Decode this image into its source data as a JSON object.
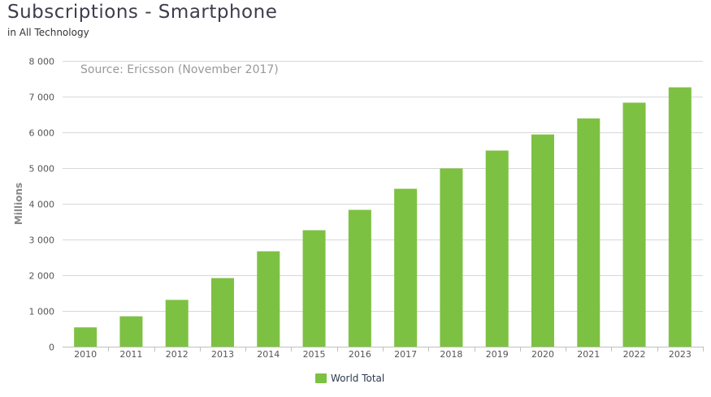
{
  "header": {
    "title": "Subscriptions - Smartphone",
    "subtitle": "in All Technology"
  },
  "colors": {
    "bar": "#7dc142",
    "grid": "#d8d8d8",
    "axis_text": "#555555",
    "source_text": "#999999"
  },
  "chart_data": {
    "type": "bar",
    "title": "Subscriptions - Smartphone",
    "subtitle": "in All Technology",
    "source_note": "Source: Ericsson (November 2017)",
    "xlabel": "",
    "ylabel": "Millions",
    "ylim": [
      0,
      8000
    ],
    "yticks": [
      0,
      1000,
      2000,
      3000,
      4000,
      5000,
      6000,
      7000,
      8000
    ],
    "ytick_labels": [
      "0",
      "1 000",
      "2 000",
      "3 000",
      "4 000",
      "5 000",
      "6 000",
      "7 000",
      "8 000"
    ],
    "grid": true,
    "legend_position": "bottom-center",
    "categories": [
      "2010",
      "2011",
      "2012",
      "2013",
      "2014",
      "2015",
      "2016",
      "2017",
      "2018",
      "2019",
      "2020",
      "2021",
      "2022",
      "2023"
    ],
    "series": [
      {
        "name": "World Total",
        "values": [
          540,
          850,
          1310,
          1920,
          2670,
          3260,
          3830,
          4420,
          4990,
          5490,
          5940,
          6390,
          6830,
          7260
        ]
      }
    ]
  }
}
